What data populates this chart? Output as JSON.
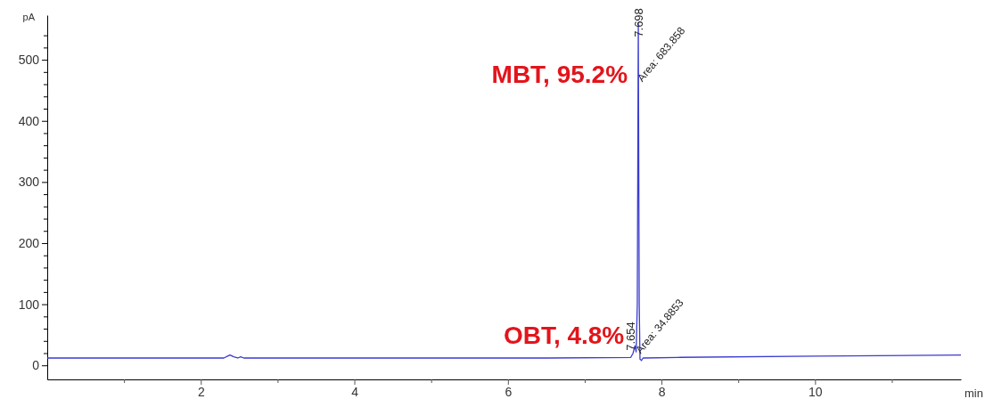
{
  "chart_data": {
    "type": "line",
    "ylabel": "pA",
    "xlabel": "min",
    "xlim": [
      0,
      11.9
    ],
    "ylim": [
      -23,
      573
    ],
    "xticks": [
      {
        "value": 1,
        "label": null
      },
      2,
      {
        "value": 3,
        "label": null
      },
      4,
      {
        "value": 5,
        "label": null
      },
      6,
      {
        "value": 7,
        "label": null
      },
      8,
      {
        "value": 9,
        "label": null
      },
      10,
      {
        "value": 11,
        "label": null
      }
    ],
    "yticks": [
      0,
      {
        "value": 20,
        "label": null
      },
      {
        "value": 40,
        "label": null
      },
      {
        "value": 60,
        "label": null
      },
      {
        "value": 80,
        "label": null
      },
      100,
      {
        "value": 120,
        "label": null
      },
      {
        "value": 140,
        "label": null
      },
      {
        "value": 160,
        "label": null
      },
      {
        "value": 180,
        "label": null
      },
      200,
      {
        "value": 220,
        "label": null
      },
      {
        "value": 240,
        "label": null
      },
      {
        "value": 260,
        "label": null
      },
      {
        "value": 280,
        "label": null
      },
      300,
      {
        "value": 320,
        "label": null
      },
      {
        "value": 340,
        "label": null
      },
      {
        "value": 360,
        "label": null
      },
      {
        "value": 380,
        "label": null
      },
      400,
      {
        "value": 420,
        "label": null
      },
      {
        "value": 440,
        "label": null
      },
      {
        "value": 460,
        "label": null
      },
      {
        "value": 480,
        "label": null
      },
      500,
      {
        "value": 520,
        "label": null
      },
      {
        "value": 540,
        "label": null
      }
    ],
    "grid": false,
    "marker": "none",
    "line_style": "solid",
    "series": [
      {
        "color": "#3b3bd0",
        "x": [
          0,
          2.3,
          2.38,
          2.43,
          2.48,
          2.52,
          2.56,
          6.5,
          7.6,
          7.63,
          7.654,
          7.67,
          7.685,
          7.698,
          7.71,
          7.72,
          7.74,
          7.76,
          8.2,
          10,
          11.9
        ],
        "values": [
          12,
          12,
          17,
          14,
          12,
          14,
          12,
          12,
          13,
          20,
          32,
          22,
          100,
          560,
          100,
          10,
          8,
          12,
          13,
          15,
          17
        ]
      }
    ],
    "annotations": [
      {
        "text": "MBT, 95.2%",
        "x": 7.698,
        "y": 462
      },
      {
        "text": "OBT, 4.8%",
        "x": 7.654,
        "y": 36
      },
      {
        "text": "7.698",
        "x": 7.698,
        "y": 537
      },
      {
        "text": "Area: 683.858",
        "x": 7.75,
        "y": 463
      },
      {
        "text": "7.654",
        "x": 7.654,
        "y": 24
      },
      {
        "text": "Area: 34.8853",
        "x": 7.73,
        "y": 18
      }
    ]
  }
}
